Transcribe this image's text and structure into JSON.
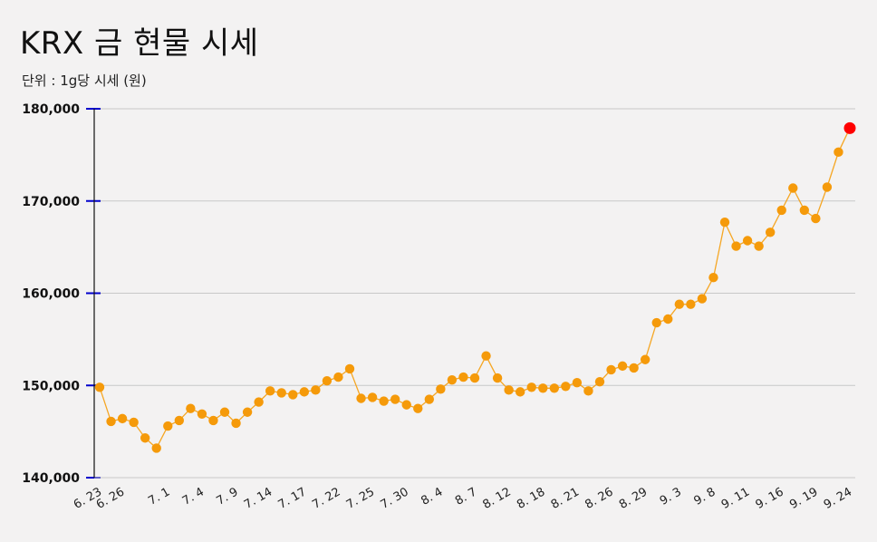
{
  "title": "KRX 금 현물 시세",
  "subtitle": "단위 : 1g당 시세 (원)",
  "colors": {
    "line": "#f5a623",
    "point": "#f59a0a",
    "last_point": "#ff0000",
    "axis_tick": "#0000cc",
    "grid": "#c8c8c8",
    "background": "#f3f2f2"
  },
  "chart_data": {
    "type": "line",
    "title": "KRX 금 현물 시세",
    "subtitle": "단위 : 1g당 시세 (원)",
    "xlabel": "",
    "ylabel": "",
    "ylim": [
      140000,
      180000
    ],
    "yticks": [
      140000,
      150000,
      160000,
      170000,
      180000
    ],
    "ytick_labels": [
      "140,000",
      "150,000",
      "160,000",
      "170,000",
      "180,000"
    ],
    "grid": true,
    "x_tick_labels": [
      {
        "index": 0,
        "label": "6. 23"
      },
      {
        "index": 2,
        "label": "6. 26"
      },
      {
        "index": 6,
        "label": "7. 1"
      },
      {
        "index": 9,
        "label": "7. 4"
      },
      {
        "index": 12,
        "label": "7. 9"
      },
      {
        "index": 15,
        "label": "7. 14"
      },
      {
        "index": 18,
        "label": "7. 17"
      },
      {
        "index": 21,
        "label": "7. 22"
      },
      {
        "index": 24,
        "label": "7. 25"
      },
      {
        "index": 27,
        "label": "7. 30"
      },
      {
        "index": 30,
        "label": "8. 4"
      },
      {
        "index": 33,
        "label": "8. 7"
      },
      {
        "index": 36,
        "label": "8. 12"
      },
      {
        "index": 39,
        "label": "8. 18"
      },
      {
        "index": 42,
        "label": "8. 21"
      },
      {
        "index": 45,
        "label": "8. 26"
      },
      {
        "index": 48,
        "label": "8. 29"
      },
      {
        "index": 51,
        "label": "9. 3"
      },
      {
        "index": 54,
        "label": "9. 8"
      },
      {
        "index": 57,
        "label": "9. 11"
      },
      {
        "index": 60,
        "label": "9. 16"
      },
      {
        "index": 63,
        "label": "9. 19"
      },
      {
        "index": 66,
        "label": "9. 24"
      }
    ],
    "values": [
      149800,
      146100,
      146400,
      146000,
      144300,
      143200,
      145600,
      146200,
      147500,
      146900,
      146200,
      147100,
      145900,
      147100,
      148200,
      149400,
      149200,
      149000,
      149300,
      149500,
      150500,
      150900,
      151800,
      148600,
      148700,
      148300,
      148500,
      147900,
      147500,
      148500,
      149600,
      150600,
      150900,
      150800,
      153200,
      150800,
      149500,
      149300,
      149800,
      149700,
      149700,
      149900,
      150300,
      149400,
      150400,
      151700,
      152100,
      151900,
      152800,
      156800,
      157200,
      158800,
      158800,
      159400,
      161700,
      167700,
      165100,
      165700,
      165100,
      166600,
      169000,
      171400,
      169000,
      168100,
      171500,
      175300,
      177900
    ]
  }
}
